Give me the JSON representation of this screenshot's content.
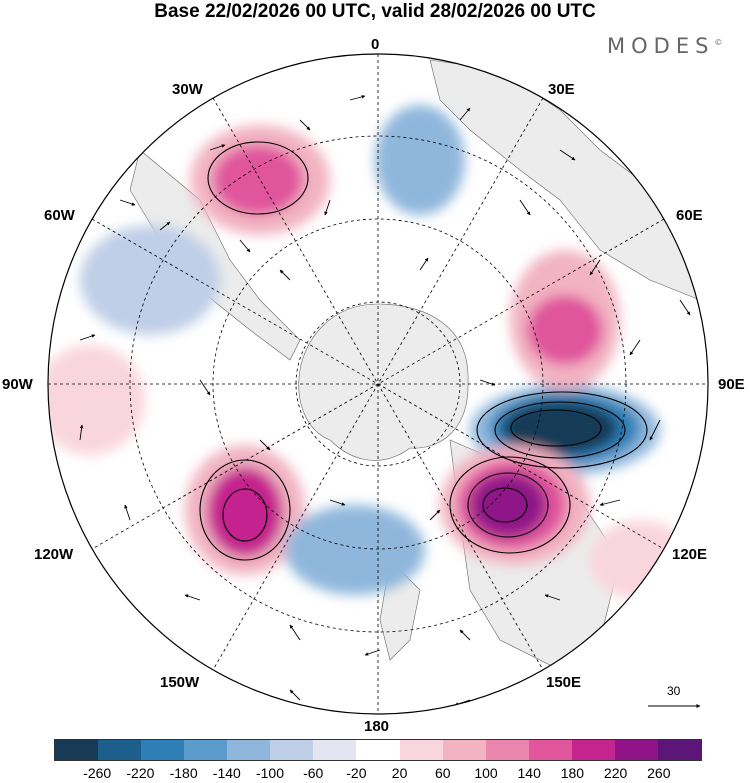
{
  "title": "Base 22/02/2026 00 UTC, valid 28/02/2026 00 UTC",
  "brand": "MODES",
  "brand_mark": "©",
  "longitude_labels": {
    "lon_0": "0",
    "lon_30e": "30E",
    "lon_60e": "60E",
    "lon_90e": "90E",
    "lon_120e": "120E",
    "lon_150e": "150E",
    "lon_180": "180",
    "lon_150w": "150W",
    "lon_120w": "120W",
    "lon_90w": "90W",
    "lon_60w": "60W",
    "lon_30w": "30W"
  },
  "wind_reference": {
    "value": "30"
  },
  "colorbar": {
    "colors": [
      "#173a56",
      "#1d5f8c",
      "#2f7fb7",
      "#5b9ccc",
      "#8fb7dc",
      "#bfcfe7",
      "#e4e4f2",
      "#ffffff",
      "#f9d6dd",
      "#f2b3c2",
      "#ea86ad",
      "#e0559c",
      "#c4248e",
      "#8f1488",
      "#5c1678"
    ],
    "tick_labels": [
      "-260",
      "-220",
      "-180",
      "-140",
      "-100",
      "-60",
      "-20",
      "20",
      "60",
      "100",
      "140",
      "180",
      "220",
      "260"
    ]
  },
  "map_features": {
    "anomaly_centers": [
      {
        "name": "negative-center-90e",
        "value": -260
      },
      {
        "name": "positive-center-120e",
        "value": 260
      },
      {
        "name": "positive-center-60e",
        "value": 180
      },
      {
        "name": "positive-center-30w",
        "value": 180
      },
      {
        "name": "positive-center-135w",
        "value": 200
      },
      {
        "name": "negative-center-180",
        "value": -140
      },
      {
        "name": "negative-center-0",
        "value": -100
      },
      {
        "name": "negative-center-60w",
        "value": -100
      }
    ]
  }
}
